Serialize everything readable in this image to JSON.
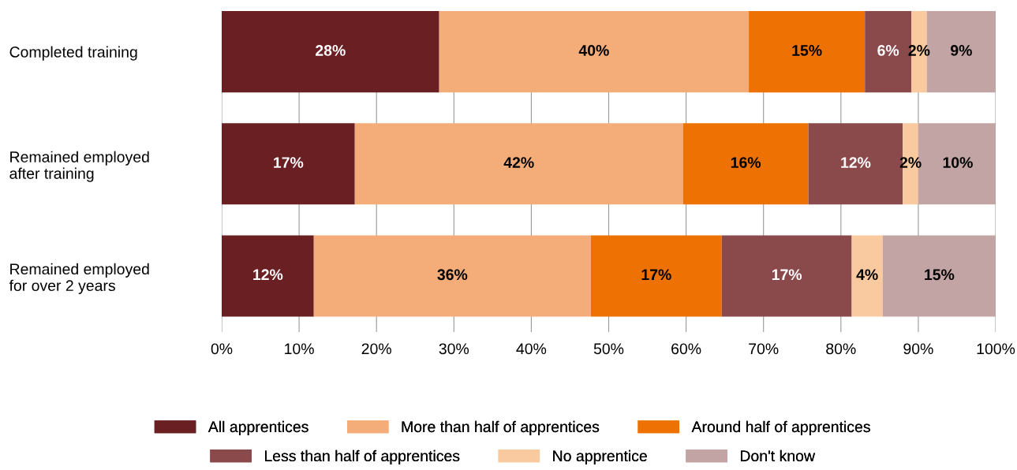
{
  "chart_data": {
    "type": "bar",
    "orientation": "horizontal",
    "stacked": true,
    "categories": [
      "Completed training",
      "Remained employed\nafter training",
      "Remained employed\nfor over 2 years"
    ],
    "series": [
      {
        "name": "All apprentices",
        "color": "#6a1f22",
        "values": [
          28.1,
          17.2,
          11.9
        ],
        "value_labels": [
          "28%",
          "17%",
          "12%"
        ]
      },
      {
        "name": "More than half of apprentices",
        "color": "#f4ac78",
        "values": [
          40.0,
          42.4,
          35.8
        ],
        "value_labels": [
          "40%",
          "42%",
          "36%"
        ]
      },
      {
        "name": "Around half of apprentices",
        "color": "#ee7203",
        "values": [
          15.0,
          16.2,
          16.9
        ],
        "value_labels": [
          "15%",
          "16%",
          "17%"
        ]
      },
      {
        "name": "Less than half of apprentices",
        "color": "#8a4a4c",
        "values": [
          6.0,
          12.2,
          16.8
        ],
        "value_labels": [
          "6%",
          "12%",
          "17%"
        ]
      },
      {
        "name": "No apprentice",
        "color": "#f9c9a0",
        "values": [
          2.0,
          2.0,
          4.0
        ],
        "value_labels": [
          "2%",
          "2%",
          "4%"
        ]
      },
      {
        "name": "Don't know",
        "color": "#c3a4a4",
        "values": [
          8.9,
          10.2,
          14.6
        ],
        "value_labels": [
          "9%",
          "10%",
          "15%"
        ]
      }
    ],
    "xlim": [
      0,
      100
    ],
    "xticks": [
      {
        "value": 0,
        "label": "0%"
      },
      {
        "value": 10,
        "label": "10%"
      },
      {
        "value": 20,
        "label": "20%"
      },
      {
        "value": 30,
        "label": "30%"
      },
      {
        "value": 40,
        "label": "40%"
      },
      {
        "value": 50,
        "label": "50%"
      },
      {
        "value": 60,
        "label": "60%"
      },
      {
        "value": 70,
        "label": "70%"
      },
      {
        "value": 80,
        "label": "80%"
      },
      {
        "value": 90,
        "label": "90%"
      },
      {
        "value": 100,
        "label": "100%"
      }
    ],
    "grid": "x",
    "legend": "bottom"
  }
}
